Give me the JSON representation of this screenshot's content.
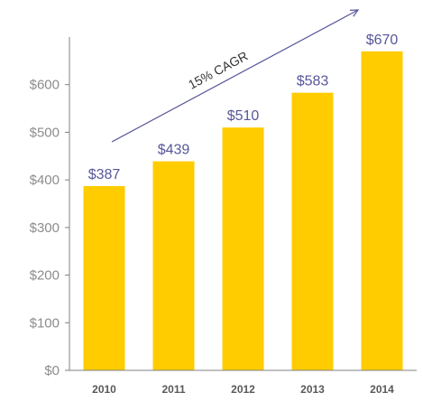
{
  "chart_data": {
    "type": "bar",
    "categories": [
      "2010",
      "2011",
      "2012",
      "2013",
      "2014"
    ],
    "values": [
      387,
      439,
      510,
      583,
      670
    ],
    "data_labels": [
      "$387",
      "$439",
      "$510",
      "$583",
      "$670"
    ],
    "yticks": [
      0,
      100,
      200,
      300,
      400,
      500,
      600
    ],
    "ytick_labels": [
      "$0",
      "$100",
      "$200",
      "$300",
      "$400",
      "$500",
      "$600"
    ],
    "ylim": [
      0,
      700
    ],
    "title": "",
    "xlabel": "",
    "ylabel": "",
    "grid": false,
    "legend": "none",
    "annotation": "15% CAGR",
    "colors": {
      "bar": "#FFCC00",
      "data_label": "#57569A",
      "axis": "#808080",
      "tick_label": "#8C8C8C",
      "category_label": "#595959",
      "arrow": "#57569A"
    }
  }
}
